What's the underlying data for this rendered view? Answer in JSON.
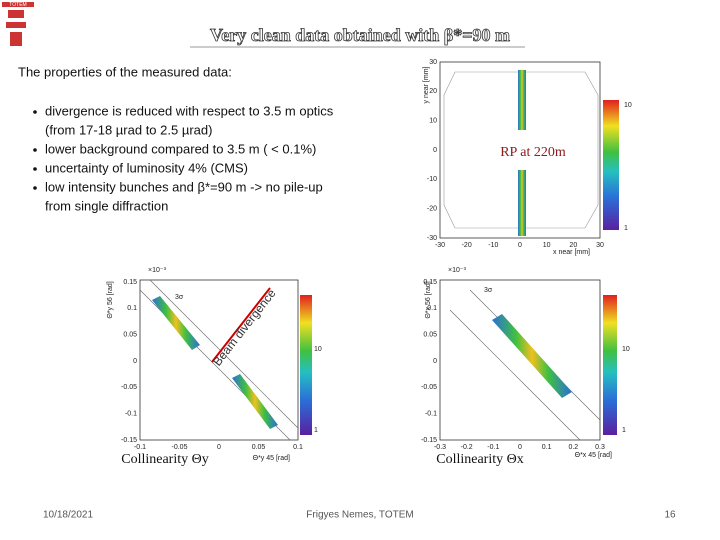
{
  "header": {
    "logo": "TOTEM",
    "title": "Very clean data obtained with β*=90 m"
  },
  "body": {
    "heading": "The properties of the measured data:",
    "bullets": [
      [
        "divergence is reduced with respect to 3.5 m optics",
        "(from 17-18 µrad  to 2.5 µrad)"
      ],
      [
        "lower background compared to 3.5 m ( < 0.1%)"
      ],
      [
        "uncertainty of luminosity 4% (CMS)"
      ],
      [
        "low intensity bunches and β*=90 m  -> no pile-up",
        "from single diffraction"
      ]
    ]
  },
  "plots": [
    {
      "annotation": "RP at 220m",
      "x_label": "x near [mm]",
      "y_label": "y near [mm]",
      "xticks": [
        "-30",
        "-20",
        "-10",
        "0",
        "10",
        "20",
        "30"
      ],
      "yticks": [
        "30",
        "20",
        "10",
        "0",
        "-10",
        "-20",
        "-30"
      ],
      "colorbar_ticks": [
        "10",
        "1"
      ]
    },
    {
      "caption": "Collinearity Θy",
      "annotation": "Beam divergence",
      "sigma": "3σ",
      "scale": "×10⁻³",
      "x_label": "Θ*y 45 [rad]",
      "y_label": "Θ*y 56 [rad]",
      "xticks": [
        "-0.1",
        "-0.05",
        "0",
        "0.05",
        "0.1"
      ],
      "yticks": [
        "0.15",
        "0.1",
        "0.05",
        "0",
        "-0.05",
        "-0.1",
        "-0.15"
      ],
      "colorbar_ticks": [
        "10",
        "1"
      ]
    },
    {
      "caption": "Collinearity Θx",
      "sigma": "3σ",
      "scale": "×10⁻³",
      "x_label": "Θ*x 45 [rad]",
      "y_label": "Θ*x 56 [rad]",
      "xticks": [
        "-0.3",
        "-0.2",
        "-0.1",
        "0",
        "0.1",
        "0.2",
        "0.3"
      ],
      "yticks": [
        "0.15",
        "0.1",
        "0.05",
        "0",
        "-0.05",
        "-0.1",
        "-0.15"
      ],
      "colorbar_ticks": [
        "10",
        "1"
      ]
    }
  ],
  "footer": {
    "date": "10/18/2021",
    "author": "Frigyes Nemes, TOTEM",
    "page": "16"
  }
}
